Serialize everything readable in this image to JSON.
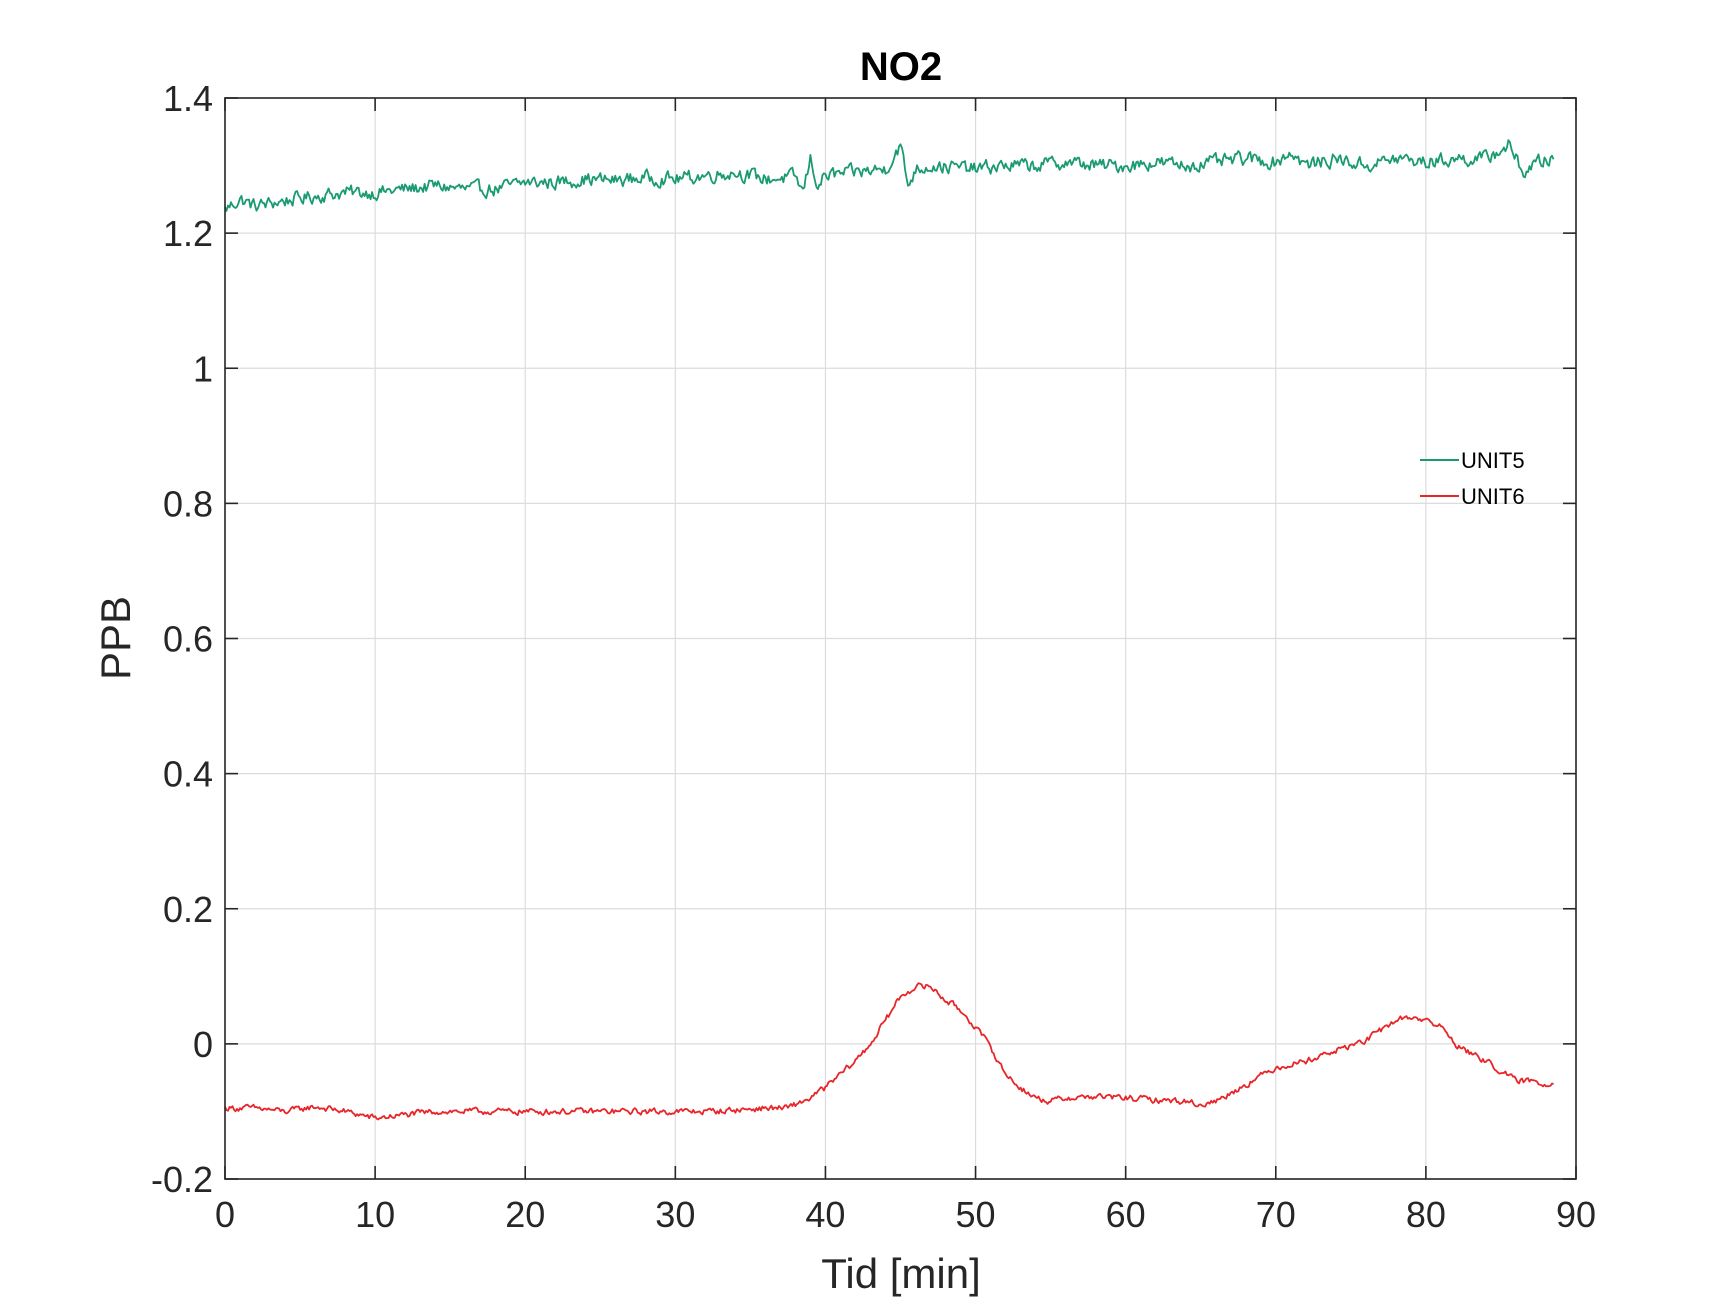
{
  "chart_data": {
    "type": "line",
    "title": "NO2",
    "xlabel": "Tid [min]",
    "ylabel": "PPB",
    "xlim": [
      0,
      90
    ],
    "ylim": [
      -0.2,
      1.4
    ],
    "grid": true,
    "legend_position": "right",
    "x_ticks": [
      0,
      10,
      20,
      30,
      40,
      50,
      60,
      70,
      80,
      90
    ],
    "x_tick_labels": [
      "0",
      "10",
      "20",
      "30",
      "40",
      "50",
      "60",
      "70",
      "80",
      "90"
    ],
    "y_ticks": [
      -0.2,
      0,
      0.2,
      0.4,
      0.6,
      0.8,
      1,
      1.2,
      1.4
    ],
    "y_tick_labels": [
      "-0.2",
      "0",
      "0.2",
      "0.4",
      "0.6",
      "0.8",
      "1",
      "1.2",
      "1.4"
    ],
    "series": [
      {
        "name": "UNIT5",
        "color": "#1a9a72",
        "x": [
          0,
          1,
          2,
          4,
          6,
          8,
          10,
          12,
          14,
          16,
          18,
          20,
          22,
          24,
          26,
          28,
          30,
          32,
          34,
          36,
          38,
          38.5,
          39,
          39.5,
          40,
          42,
          44,
          45,
          45.5,
          46,
          47,
          50,
          52,
          54,
          56,
          58,
          60,
          62,
          64,
          66,
          68,
          70,
          71,
          72,
          74,
          76,
          78,
          80,
          82,
          84,
          85.5,
          86.5,
          87.5,
          88.5
        ],
        "values": [
          1.235,
          1.25,
          1.24,
          1.248,
          1.255,
          1.26,
          1.26,
          1.265,
          1.27,
          1.265,
          1.265,
          1.275,
          1.275,
          1.28,
          1.278,
          1.282,
          1.28,
          1.285,
          1.29,
          1.28,
          1.283,
          1.26,
          1.31,
          1.27,
          1.285,
          1.29,
          1.295,
          1.33,
          1.27,
          1.295,
          1.3,
          1.295,
          1.3,
          1.3,
          1.305,
          1.3,
          1.3,
          1.305,
          1.3,
          1.305,
          1.31,
          1.305,
          1.32,
          1.3,
          1.31,
          1.3,
          1.31,
          1.305,
          1.31,
          1.31,
          1.33,
          1.29,
          1.305,
          1.31
        ]
      },
      {
        "name": "UNIT6",
        "color": "#e8262a",
        "x": [
          0,
          2,
          4,
          6,
          8,
          10,
          12,
          14,
          16,
          18,
          20,
          22,
          24,
          26,
          28,
          30,
          32,
          34,
          36,
          37.5,
          39,
          40,
          41,
          42,
          43,
          44,
          45,
          46,
          47,
          48,
          49,
          50,
          51,
          52,
          53,
          54,
          55,
          56,
          58,
          60,
          62,
          64,
          65,
          66,
          68,
          70,
          72,
          74,
          76,
          77,
          78,
          79,
          80,
          81,
          82,
          83,
          84,
          85,
          86,
          87,
          88,
          88.5
        ],
        "values": [
          -0.095,
          -0.095,
          -0.1,
          -0.093,
          -0.1,
          -0.11,
          -0.105,
          -0.1,
          -0.1,
          -0.1,
          -0.1,
          -0.1,
          -0.1,
          -0.1,
          -0.1,
          -0.1,
          -0.1,
          -0.098,
          -0.095,
          -0.095,
          -0.08,
          -0.065,
          -0.045,
          -0.025,
          0.0,
          0.035,
          0.07,
          0.085,
          0.085,
          0.065,
          0.05,
          0.025,
          -0.005,
          -0.045,
          -0.065,
          -0.08,
          -0.085,
          -0.08,
          -0.078,
          -0.08,
          -0.083,
          -0.085,
          -0.09,
          -0.085,
          -0.06,
          -0.035,
          -0.025,
          -0.01,
          0.005,
          0.02,
          0.035,
          0.04,
          0.035,
          0.025,
          0.0,
          -0.015,
          -0.025,
          -0.04,
          -0.055,
          -0.055,
          -0.06,
          -0.055
        ]
      }
    ]
  }
}
